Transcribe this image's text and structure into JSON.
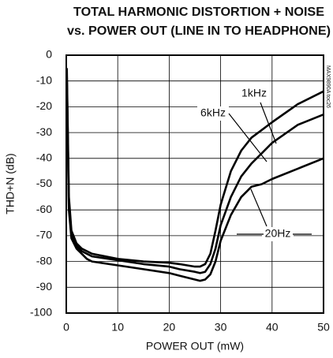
{
  "chart_data": {
    "type": "line",
    "title": [
      "TOTAL HARMONIC DISTORTION + NOISE",
      "vs. POWER OUT (LINE IN TO HEADPHONE)"
    ],
    "note": "MAX9890A toc26",
    "x_label": "POWER OUT (mW)",
    "y_label": "THD+N (dB)",
    "x": [
      0.1,
      0.5,
      1,
      2,
      3,
      4,
      5,
      10,
      15,
      20,
      22,
      25,
      26,
      27,
      28,
      29,
      30,
      32,
      34,
      36,
      38,
      40,
      45,
      50
    ],
    "series": [
      {
        "name": "1kHz",
        "color": "#000000",
        "values": [
          -5,
          -55,
          -68,
          -73,
          -75,
          -76,
          -77,
          -79,
          -80,
          -80.5,
          -81,
          -82,
          -82,
          -81,
          -77,
          -68,
          -58,
          -45,
          -37,
          -32,
          -29,
          -26,
          -19,
          -14
        ]
      },
      {
        "name": "6kHz",
        "color": "#000000",
        "values": [
          -8,
          -58,
          -70,
          -74,
          -76,
          -77,
          -78,
          -79.5,
          -81,
          -82,
          -83,
          -84,
          -84.5,
          -84,
          -81,
          -75,
          -66,
          -55,
          -47,
          -42,
          -38,
          -34,
          -27,
          -23
        ]
      },
      {
        "name": "20Hz",
        "color": "#000000",
        "values": [
          -10,
          -60,
          -71,
          -75,
          -77,
          -79,
          -80,
          -81.5,
          -83,
          -84.5,
          -85.5,
          -87,
          -87.5,
          -87,
          -85,
          -80,
          -72,
          -62,
          -55,
          -51,
          -50,
          -48,
          -44,
          -40
        ]
      }
    ],
    "xlim": [
      0,
      50
    ],
    "ylim": [
      -100,
      0
    ],
    "xticks": [
      0,
      10,
      20,
      30,
      40,
      50
    ],
    "yticks": [
      0,
      -10,
      -20,
      -30,
      -40,
      -50,
      -60,
      -70,
      -80,
      -90,
      -100
    ],
    "grid": true
  }
}
